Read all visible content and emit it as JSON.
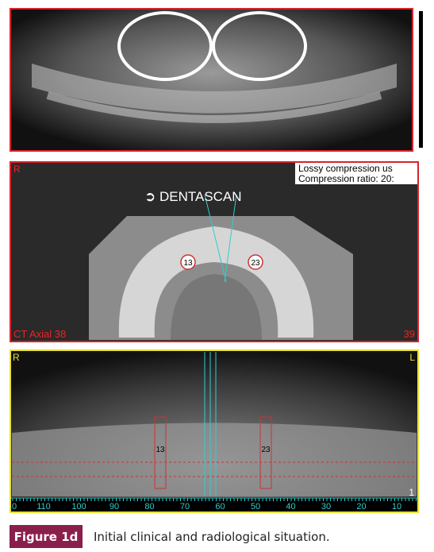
{
  "axial": {
    "orientation": "R",
    "notice": [
      "Lossy compression us",
      "Compression ratio: 20:"
    ],
    "label": "➲ DENTASCAN",
    "teeth": [
      "13",
      "23"
    ],
    "slice_label": "CT Axial 38",
    "slice_number": "39"
  },
  "reconstruction": {
    "left_marker": "R",
    "right_marker": "L",
    "teeth": [
      "13",
      "23"
    ],
    "corner": "1",
    "ruler": [
      "0",
      "110",
      "100",
      "90",
      "80",
      "70",
      "60",
      "50",
      "40",
      "30",
      "20",
      "10"
    ]
  },
  "caption": {
    "label": "Figure 1d",
    "text": "Initial clinical and radiological situation."
  }
}
